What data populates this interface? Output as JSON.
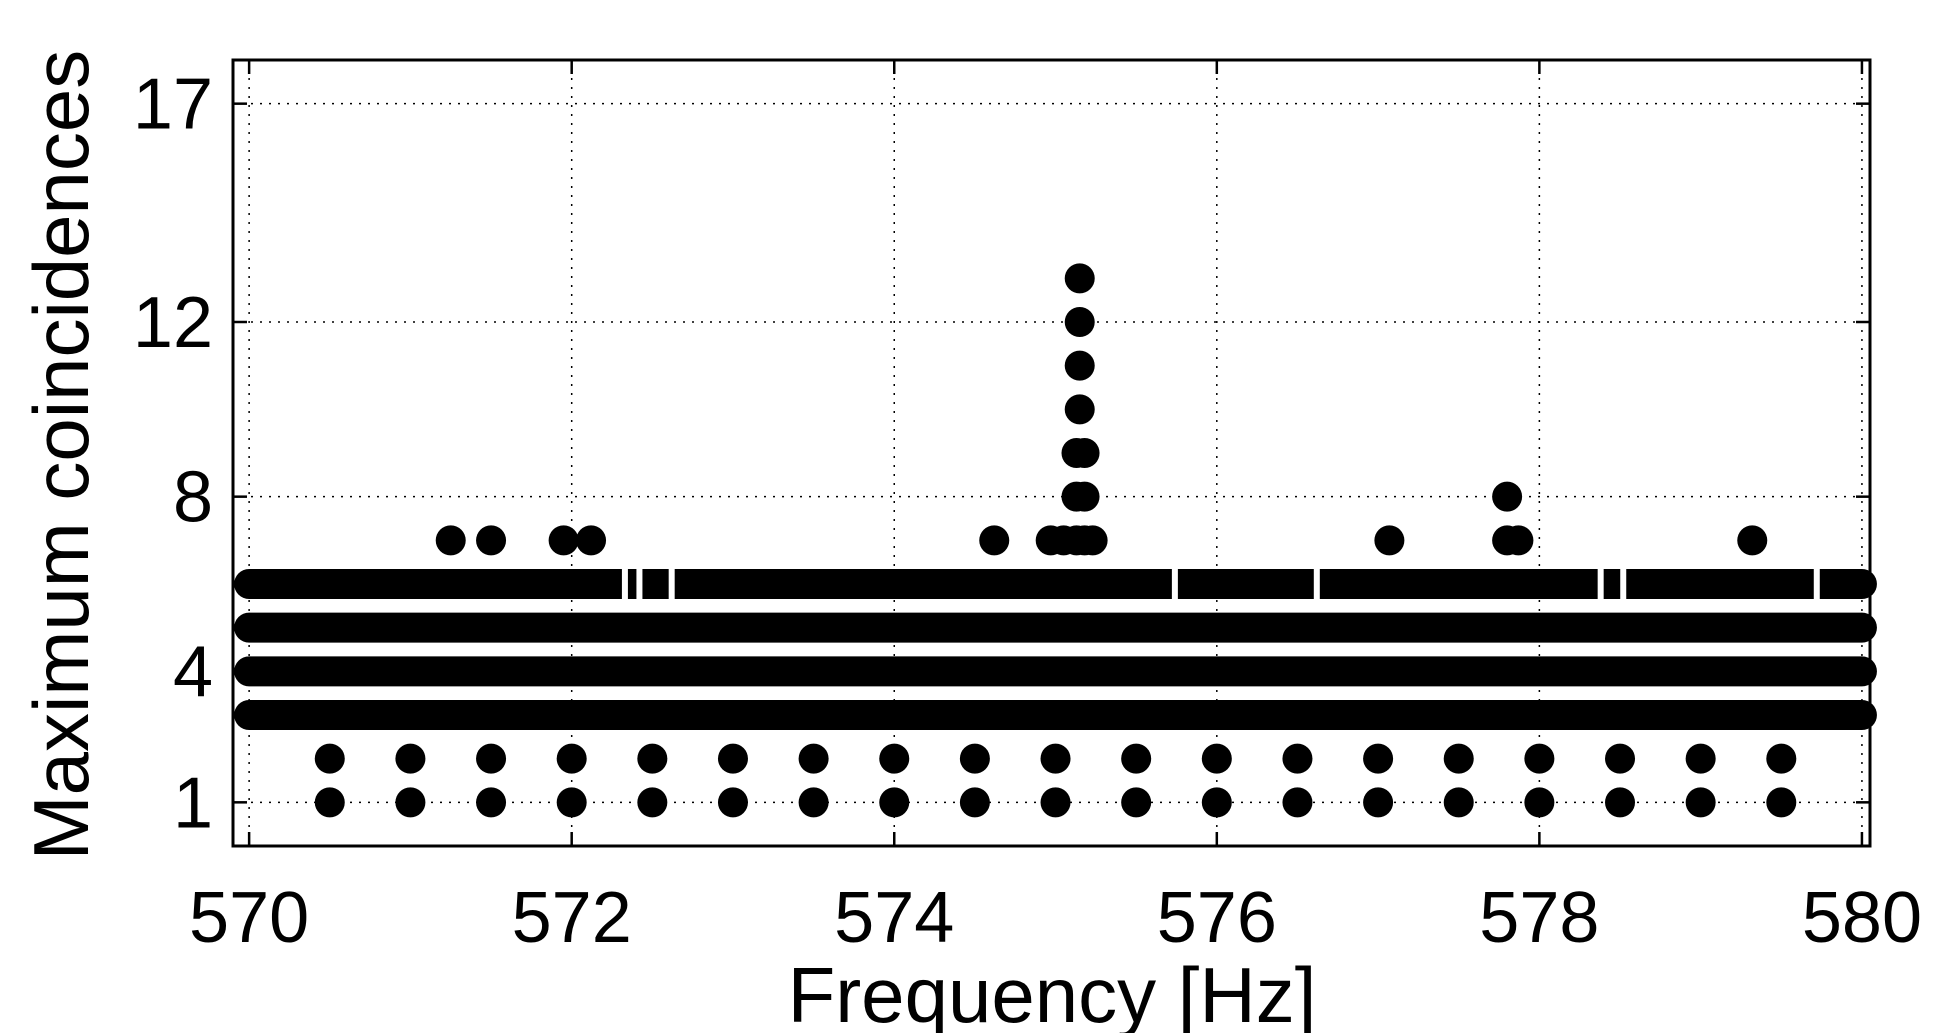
{
  "chart_data": {
    "type": "scatter",
    "xlabel": "Frequency [Hz]",
    "ylabel": "Maximum coincidences",
    "xlim": [
      569.9,
      580.05
    ],
    "ylim": [
      0,
      18
    ],
    "xticks": [
      570,
      572,
      574,
      576,
      578,
      580
    ],
    "yticks": [
      1,
      4,
      8,
      12,
      17
    ],
    "grid": true,
    "marker": "filled-circle",
    "marker_color": "#000000",
    "bands": [
      {
        "y": 3,
        "x_range": [
          570.0,
          580.0
        ],
        "note": "dense continuous band"
      },
      {
        "y": 4,
        "x_range": [
          570.0,
          580.0
        ],
        "note": "dense continuous band"
      },
      {
        "y": 5,
        "x_range": [
          570.0,
          580.0
        ],
        "note": "dense continuous band"
      },
      {
        "y": 6,
        "x_range": [
          570.0,
          580.0
        ],
        "note": "nearly continuous with small gaps"
      }
    ],
    "points": [
      {
        "x": 570.5,
        "y": 1
      },
      {
        "x": 571.0,
        "y": 1
      },
      {
        "x": 571.5,
        "y": 1
      },
      {
        "x": 572.0,
        "y": 1
      },
      {
        "x": 572.5,
        "y": 1
      },
      {
        "x": 573.0,
        "y": 1
      },
      {
        "x": 573.5,
        "y": 1
      },
      {
        "x": 574.0,
        "y": 1
      },
      {
        "x": 574.5,
        "y": 1
      },
      {
        "x": 575.0,
        "y": 1
      },
      {
        "x": 575.5,
        "y": 1
      },
      {
        "x": 576.0,
        "y": 1
      },
      {
        "x": 576.5,
        "y": 1
      },
      {
        "x": 577.0,
        "y": 1
      },
      {
        "x": 577.5,
        "y": 1
      },
      {
        "x": 578.0,
        "y": 1
      },
      {
        "x": 578.5,
        "y": 1
      },
      {
        "x": 579.0,
        "y": 1
      },
      {
        "x": 579.5,
        "y": 1
      },
      {
        "x": 570.5,
        "y": 2
      },
      {
        "x": 571.0,
        "y": 2
      },
      {
        "x": 571.5,
        "y": 2
      },
      {
        "x": 572.0,
        "y": 2
      },
      {
        "x": 572.5,
        "y": 2
      },
      {
        "x": 573.0,
        "y": 2
      },
      {
        "x": 573.5,
        "y": 2
      },
      {
        "x": 574.0,
        "y": 2
      },
      {
        "x": 574.5,
        "y": 2
      },
      {
        "x": 575.0,
        "y": 2
      },
      {
        "x": 575.5,
        "y": 2
      },
      {
        "x": 576.0,
        "y": 2
      },
      {
        "x": 576.5,
        "y": 2
      },
      {
        "x": 577.0,
        "y": 2
      },
      {
        "x": 577.5,
        "y": 2
      },
      {
        "x": 578.0,
        "y": 2
      },
      {
        "x": 578.5,
        "y": 2
      },
      {
        "x": 579.0,
        "y": 2
      },
      {
        "x": 579.5,
        "y": 2
      },
      {
        "x": 571.25,
        "y": 7
      },
      {
        "x": 571.5,
        "y": 7
      },
      {
        "x": 571.95,
        "y": 7
      },
      {
        "x": 572.12,
        "y": 7
      },
      {
        "x": 574.62,
        "y": 7
      },
      {
        "x": 574.97,
        "y": 7
      },
      {
        "x": 575.05,
        "y": 7
      },
      {
        "x": 575.13,
        "y": 7
      },
      {
        "x": 575.18,
        "y": 7
      },
      {
        "x": 575.23,
        "y": 7
      },
      {
        "x": 577.07,
        "y": 7
      },
      {
        "x": 577.8,
        "y": 7
      },
      {
        "x": 577.87,
        "y": 7
      },
      {
        "x": 579.32,
        "y": 7
      },
      {
        "x": 575.13,
        "y": 8
      },
      {
        "x": 575.18,
        "y": 8
      },
      {
        "x": 577.8,
        "y": 8
      },
      {
        "x": 575.13,
        "y": 9
      },
      {
        "x": 575.18,
        "y": 9
      },
      {
        "x": 575.15,
        "y": 10
      },
      {
        "x": 575.15,
        "y": 11
      },
      {
        "x": 575.15,
        "y": 12
      },
      {
        "x": 575.15,
        "y": 13
      }
    ]
  }
}
